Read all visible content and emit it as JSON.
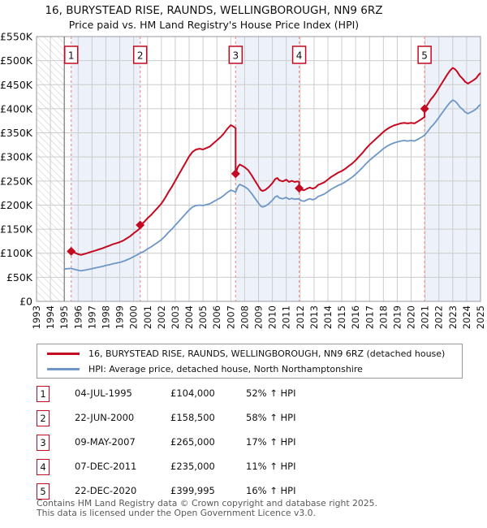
{
  "page": {
    "title": "16, BURYSTEAD RISE, RAUNDS, WELLINGBOROUGH, NN9 6RZ",
    "subtitle": "Price paid vs. HM Land Registry's House Price Index (HPI)"
  },
  "legend": {
    "entries": [
      {
        "label": "16, BURYSTEAD RISE, RAUNDS, WELLINGBOROUGH, NN9 6RZ (detached house)",
        "color": "#c40a21"
      },
      {
        "label": "HPI: Average price, detached house, North Northamptonshire",
        "color": "#6e96c8"
      }
    ]
  },
  "footer": {
    "line1": "Contains HM Land Registry data © Crown copyright and database right 2025.",
    "line2": "This data is licensed under the Open Government Licence v3.0."
  },
  "chart_data": {
    "type": "line",
    "title": "16, BURYSTEAD RISE, RAUNDS, WELLINGBOROUGH, NN9 6RZ",
    "subtitle": "Price paid vs. HM Land Registry's House Price Index (HPI)",
    "x_range": [
      1993,
      2025
    ],
    "x_ticks": [
      1993,
      1994,
      1995,
      1996,
      1997,
      1998,
      1999,
      2000,
      2001,
      2002,
      2003,
      2004,
      2005,
      2006,
      2007,
      2008,
      2009,
      2010,
      2011,
      2012,
      2013,
      2014,
      2015,
      2016,
      2017,
      2018,
      2019,
      2020,
      2021,
      2022,
      2023,
      2024,
      2025
    ],
    "ylim_k": [
      0,
      550
    ],
    "y_tick_labels": [
      "£0",
      "£50K",
      "£100K",
      "£150K",
      "£200K",
      "£250K",
      "£300K",
      "£350K",
      "£400K",
      "£450K",
      "£500K",
      "£550K"
    ],
    "grid": true,
    "legend_position": "bottom",
    "hatch_region": [
      1993,
      1995
    ],
    "colors": {
      "price": "#c40a21",
      "hpi": "#6e96c8",
      "dashed": "#f0908f",
      "band": "#edf2fa",
      "grid": "#cccccc",
      "hatch": "#c9c9c9",
      "border": "#9a9aa0",
      "data_start": "#666666"
    },
    "series_names": [
      "16, BURYSTEAD RISE, RAUNDS, WELLINGBOROUGH, NN9 6RZ (detached house)",
      "HPI: Average price, detached house, North Northamptonshire"
    ],
    "sales": [
      {
        "n": "1",
        "date": "04-JUL-1995",
        "year": 1995.5,
        "price": 104000,
        "price_label": "£104,000",
        "vs_hpi": "52% ↑ HPI",
        "factor": 1.52
      },
      {
        "n": "2",
        "date": "22-JUN-2000",
        "year": 2000.47,
        "price": 158500,
        "price_label": "£158,500",
        "vs_hpi": "58% ↑ HPI",
        "factor": 1.585
      },
      {
        "n": "3",
        "date": "09-MAY-2007",
        "year": 2007.35,
        "price": 265000,
        "price_label": "£265,000",
        "vs_hpi": "17% ↑ HPI",
        "factor": 1.17
      },
      {
        "n": "4",
        "date": "07-DEC-2011",
        "year": 2011.93,
        "price": 235000,
        "price_label": "£235,000",
        "vs_hpi": "11% ↑ HPI",
        "factor": 1.11
      },
      {
        "n": "5",
        "date": "22-DEC-2020",
        "year": 2020.97,
        "price": 399995,
        "price_label": "£399,995",
        "vs_hpi": "16% ↑ HPI",
        "factor": 1.16
      }
    ],
    "hpi_series_k": [
      [
        1995.0,
        67
      ],
      [
        1995.25,
        68
      ],
      [
        1995.5,
        68.4
      ],
      [
        1995.75,
        66.5
      ],
      [
        1996.0,
        64.5
      ],
      [
        1996.2,
        63.5
      ],
      [
        1996.5,
        65
      ],
      [
        1996.75,
        66.5
      ],
      [
        1997.0,
        68
      ],
      [
        1997.25,
        69.5
      ],
      [
        1997.5,
        71
      ],
      [
        1997.75,
        72.5
      ],
      [
        1998.0,
        74.5
      ],
      [
        1998.25,
        76
      ],
      [
        1998.5,
        78
      ],
      [
        1998.75,
        79.5
      ],
      [
        1999.0,
        81
      ],
      [
        1999.25,
        83
      ],
      [
        1999.5,
        86
      ],
      [
        1999.75,
        89
      ],
      [
        2000.0,
        93
      ],
      [
        2000.25,
        96.5
      ],
      [
        2000.47,
        100
      ],
      [
        2000.75,
        104
      ],
      [
        2001.0,
        109
      ],
      [
        2001.25,
        113
      ],
      [
        2001.5,
        118
      ],
      [
        2001.75,
        123
      ],
      [
        2002.0,
        128
      ],
      [
        2002.25,
        135
      ],
      [
        2002.5,
        143
      ],
      [
        2002.75,
        150
      ],
      [
        2003.0,
        158
      ],
      [
        2003.25,
        166
      ],
      [
        2003.5,
        174
      ],
      [
        2003.75,
        182
      ],
      [
        2004.0,
        190
      ],
      [
        2004.25,
        196
      ],
      [
        2004.5,
        199
      ],
      [
        2004.75,
        200
      ],
      [
        2005.0,
        199
      ],
      [
        2005.25,
        201
      ],
      [
        2005.5,
        203
      ],
      [
        2005.75,
        207
      ],
      [
        2006.0,
        211
      ],
      [
        2006.25,
        215
      ],
      [
        2006.5,
        220
      ],
      [
        2006.75,
        226
      ],
      [
        2007.0,
        231
      ],
      [
        2007.2,
        229
      ],
      [
        2007.35,
        227
      ],
      [
        2007.5,
        238
      ],
      [
        2007.65,
        243
      ],
      [
        2007.8,
        241
      ],
      [
        2008.0,
        238
      ],
      [
        2008.25,
        233
      ],
      [
        2008.5,
        224
      ],
      [
        2008.75,
        214
      ],
      [
        2009.0,
        204
      ],
      [
        2009.15,
        198
      ],
      [
        2009.3,
        196
      ],
      [
        2009.5,
        198
      ],
      [
        2009.75,
        203
      ],
      [
        2010.0,
        210
      ],
      [
        2010.2,
        217
      ],
      [
        2010.35,
        219
      ],
      [
        2010.5,
        215
      ],
      [
        2010.75,
        213
      ],
      [
        2011.0,
        216
      ],
      [
        2011.2,
        212
      ],
      [
        2011.4,
        214
      ],
      [
        2011.6,
        212
      ],
      [
        2011.8,
        213
      ],
      [
        2011.93,
        212
      ],
      [
        2012.1,
        209
      ],
      [
        2012.3,
        208
      ],
      [
        2012.5,
        211
      ],
      [
        2012.7,
        213
      ],
      [
        2012.9,
        211
      ],
      [
        2013.1,
        213
      ],
      [
        2013.3,
        218
      ],
      [
        2013.5,
        220
      ],
      [
        2013.75,
        223
      ],
      [
        2014.0,
        228
      ],
      [
        2014.25,
        233
      ],
      [
        2014.5,
        237
      ],
      [
        2014.75,
        241
      ],
      [
        2015.0,
        244
      ],
      [
        2015.25,
        248
      ],
      [
        2015.5,
        253
      ],
      [
        2015.75,
        258
      ],
      [
        2016.0,
        264
      ],
      [
        2016.25,
        271
      ],
      [
        2016.5,
        278
      ],
      [
        2016.75,
        286
      ],
      [
        2017.0,
        293
      ],
      [
        2017.25,
        299
      ],
      [
        2017.5,
        305
      ],
      [
        2017.75,
        311
      ],
      [
        2018.0,
        317
      ],
      [
        2018.25,
        322
      ],
      [
        2018.5,
        326
      ],
      [
        2018.75,
        329
      ],
      [
        2019.0,
        331
      ],
      [
        2019.25,
        333
      ],
      [
        2019.5,
        334
      ],
      [
        2019.75,
        333
      ],
      [
        2020.0,
        334
      ],
      [
        2020.25,
        333
      ],
      [
        2020.5,
        337
      ],
      [
        2020.75,
        341
      ],
      [
        2020.97,
        345
      ],
      [
        2021.2,
        353
      ],
      [
        2021.4,
        361
      ],
      [
        2021.6,
        367
      ],
      [
        2021.8,
        374
      ],
      [
        2022.0,
        382
      ],
      [
        2022.2,
        390
      ],
      [
        2022.4,
        398
      ],
      [
        2022.6,
        406
      ],
      [
        2022.8,
        413
      ],
      [
        2023.0,
        418
      ],
      [
        2023.15,
        416
      ],
      [
        2023.3,
        412
      ],
      [
        2023.5,
        404
      ],
      [
        2023.7,
        399
      ],
      [
        2023.9,
        393
      ],
      [
        2024.1,
        390
      ],
      [
        2024.3,
        393
      ],
      [
        2024.5,
        396
      ],
      [
        2024.7,
        400
      ],
      [
        2024.85,
        405
      ],
      [
        2025.0,
        409
      ]
    ]
  }
}
